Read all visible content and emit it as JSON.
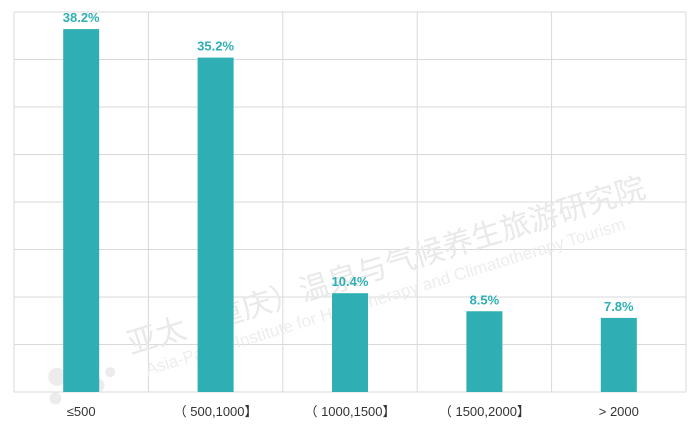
{
  "watermark": {
    "chinese": "亚太（重庆）温泉与气候养生旅游研究院",
    "english": "Asia-Pacific Institute for Hydrotherapy and Climatotherapy Tourism"
  },
  "chart_data": {
    "type": "bar",
    "categories": [
      "≤500",
      "（ 500,1000】",
      "（ 1000,1500】",
      "（ 1500,2000】",
      "> 2000"
    ],
    "values": [
      38.2,
      35.2,
      10.4,
      8.5,
      7.8
    ],
    "data_labels": [
      "38.2%",
      "35.2%",
      "10.4%",
      "8.5%",
      "7.8%"
    ],
    "unit": "%",
    "title": "",
    "xlabel": "",
    "ylabel": "",
    "ylim": [
      0,
      40
    ],
    "grid": true,
    "legend": "none",
    "colors": {
      "bar": "#2FAFB3",
      "label": "#2FAFB3",
      "grid": "#D9D9D9",
      "tick": "#333333"
    }
  }
}
